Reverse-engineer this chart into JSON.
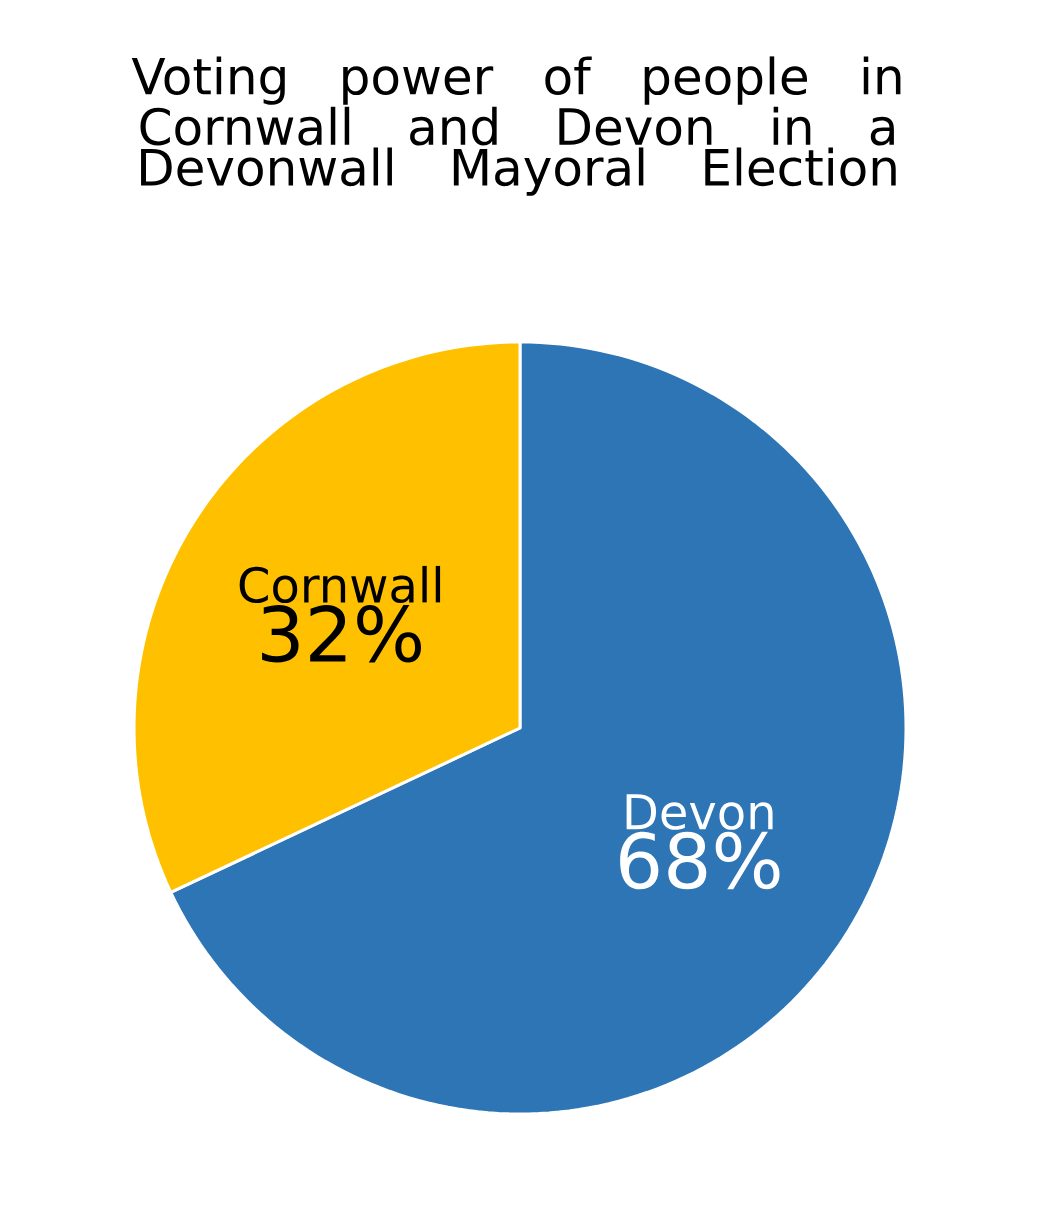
{
  "chart_data": {
    "type": "pie",
    "title": "Voting power of people in Cornwall and Devon in a Devonwall Mayoral Election",
    "categories": [
      "Devon",
      "Cornwall"
    ],
    "values": [
      68,
      32
    ],
    "value_labels": [
      "68%",
      "32%"
    ],
    "colors": [
      "#2e75b6",
      "#ffc000"
    ]
  }
}
